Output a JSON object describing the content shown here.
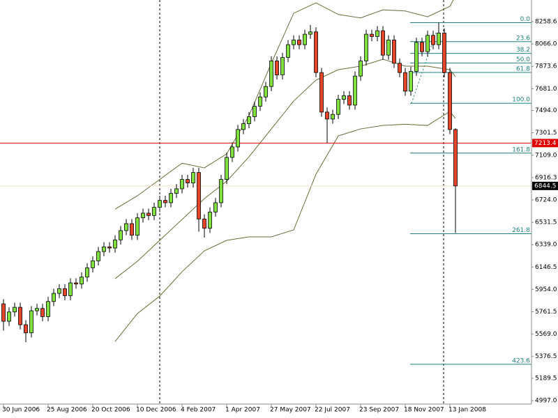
{
  "chart_data": {
    "type": "candlestick",
    "categories": [
      "30 Jun 2006",
      null,
      null,
      null,
      null,
      null,
      null,
      null,
      "25 Aug 2006",
      null,
      null,
      null,
      null,
      null,
      null,
      null,
      "20 Oct 2006",
      null,
      null,
      null,
      null,
      null,
      null,
      null,
      "10 Dec 2006",
      null,
      null,
      null,
      null,
      null,
      null,
      null,
      "4 Feb 2007",
      null,
      null,
      null,
      null,
      null,
      null,
      null,
      "1 Apr 2007",
      null,
      null,
      null,
      null,
      null,
      null,
      null,
      "27 May 2007",
      null,
      null,
      null,
      null,
      null,
      null,
      null,
      "22 Jul 2007",
      null,
      null,
      null,
      null,
      null,
      null,
      null,
      "23 Sep 2007",
      null,
      null,
      null,
      null,
      null,
      null,
      null,
      "18 Nov 2007",
      null,
      null,
      null,
      null,
      null,
      null,
      null,
      "13 Jan 2008",
      null
    ],
    "open": [
      5830,
      5680,
      5760,
      5800,
      5650,
      5580,
      5770,
      5790,
      5720,
      5850,
      5920,
      5960,
      5900,
      6010,
      6000,
      6060,
      6140,
      6200,
      6280,
      6320,
      6310,
      6380,
      6460,
      6520,
      6420,
      6570,
      6610,
      6590,
      6660,
      6720,
      6700,
      6780,
      6820,
      6900,
      6870,
      6960,
      6560,
      6480,
      6620,
      6700,
      6900,
      7090,
      7180,
      7330,
      7380,
      7440,
      7530,
      7610,
      7700,
      7920,
      7800,
      7950,
      8060,
      8100,
      8060,
      8150,
      8170,
      7820,
      7480,
      7420,
      7460,
      7590,
      7620,
      7540,
      7790,
      7920,
      8150,
      8130,
      8180,
      7970,
      8100,
      7900,
      7820,
      7660,
      7830,
      8080,
      8000,
      8140,
      8060,
      8160,
      7820,
      7330
    ],
    "high": [
      5870,
      5800,
      5840,
      5840,
      5690,
      5810,
      5830,
      5830,
      5890,
      5960,
      6000,
      6000,
      6050,
      6050,
      6100,
      6180,
      6240,
      6320,
      6360,
      6360,
      6420,
      6500,
      6560,
      6560,
      6610,
      6650,
      6650,
      6700,
      6760,
      6760,
      6820,
      6860,
      6940,
      6940,
      7000,
      7000,
      6600,
      6660,
      6740,
      6940,
      7130,
      7220,
      7370,
      7420,
      7480,
      7570,
      7650,
      7740,
      7960,
      7960,
      7990,
      8100,
      8140,
      8140,
      8190,
      8230,
      8210,
      7860,
      7520,
      7500,
      7630,
      7660,
      7660,
      7830,
      7960,
      8190,
      8190,
      8220,
      8220,
      8140,
      8140,
      7940,
      7860,
      7870,
      8120,
      8120,
      8180,
      8180,
      8250,
      8200,
      7860,
      7340
    ],
    "low": [
      5600,
      5640,
      5720,
      5610,
      5500,
      5540,
      5730,
      5680,
      5680,
      5810,
      5880,
      5860,
      5860,
      5960,
      5960,
      6020,
      6100,
      6160,
      6240,
      6270,
      6270,
      6340,
      6420,
      6380,
      6380,
      6530,
      6550,
      6550,
      6620,
      6660,
      6660,
      6740,
      6780,
      6830,
      6830,
      6450,
      6400,
      6440,
      6580,
      6660,
      6860,
      7050,
      7140,
      7290,
      7340,
      7400,
      7490,
      7570,
      7660,
      7760,
      7760,
      7910,
      8020,
      8020,
      8020,
      8110,
      7780,
      7440,
      7215,
      7380,
      7420,
      7550,
      7500,
      7500,
      7750,
      7880,
      8090,
      8090,
      7930,
      7930,
      7860,
      7780,
      7620,
      7620,
      7790,
      7960,
      7960,
      8020,
      8020,
      7780,
      7290,
      6440
    ],
    "close": [
      5680,
      5760,
      5800,
      5650,
      5580,
      5770,
      5790,
      5720,
      5850,
      5920,
      5960,
      5900,
      6010,
      6000,
      6060,
      6140,
      6200,
      6280,
      6320,
      6310,
      6380,
      6460,
      6520,
      6420,
      6570,
      6610,
      6590,
      6660,
      6720,
      6700,
      6780,
      6820,
      6900,
      6870,
      6960,
      6560,
      6480,
      6620,
      6700,
      6900,
      7090,
      7180,
      7330,
      7380,
      7440,
      7530,
      7610,
      7700,
      7920,
      7800,
      7950,
      8060,
      8100,
      8060,
      8150,
      8170,
      7820,
      7480,
      7420,
      7460,
      7590,
      7620,
      7540,
      7790,
      7920,
      8150,
      8130,
      8180,
      7970,
      8100,
      7900,
      7820,
      7660,
      7830,
      8080,
      8000,
      8140,
      8060,
      8160,
      7820,
      7330,
      6844.5
    ],
    "up_color": "#80e040",
    "down_color": "#e8462a",
    "bands": {
      "color": "#6b6b3a",
      "x": [
        20,
        24,
        28,
        32,
        36,
        40,
        44,
        48,
        52,
        56,
        60,
        64,
        68,
        72,
        76,
        80,
        81
      ],
      "upper": [
        6644,
        6760,
        6900,
        7040,
        7000,
        7120,
        7450,
        7900,
        8330,
        8420,
        8320,
        8290,
        8360,
        8350,
        8300,
        8390,
        8480
      ],
      "middle": [
        6046,
        6196,
        6376,
        6556,
        6735,
        6885,
        7095,
        7335,
        7575,
        7755,
        7845,
        7875,
        7935,
        7875,
        7875,
        7845,
        7785
      ],
      "lower": [
        5506,
        5746,
        5896,
        6106,
        6286,
        6376,
        6406,
        6406,
        6466,
        6945,
        7275,
        7335,
        7365,
        7375,
        7365,
        7485,
        7425
      ]
    },
    "fibonacci": {
      "color": "#1f7f7f",
      "levels": [
        {
          "label": "0.0",
          "price": 8250
        },
        {
          "label": "23.6",
          "price": 8086
        },
        {
          "label": "38.2",
          "price": 7985
        },
        {
          "label": "50.0",
          "price": 7903
        },
        {
          "label": "61.8",
          "price": 7821
        },
        {
          "label": "100.0",
          "price": 7556
        },
        {
          "label": "161.8",
          "price": 7127
        },
        {
          "label": "261.8",
          "price": 6433
        },
        {
          "label": "423.6",
          "price": 5310
        }
      ]
    },
    "alert_line": {
      "value": 7213.4,
      "color": "#e00000"
    },
    "ylim": [
      4967.2,
      8444.5
    ],
    "yticks": [
      8258.6,
      {
        "value": 8066,
        "label": "8066.0"
      },
      7873.6,
      {
        "value": 7681,
        "label": "7681.0"
      },
      {
        "value": 7494,
        "label": "7494.0"
      },
      7301.5,
      {
        "value": 7109,
        "label": "7109.0"
      },
      6916.3,
      {
        "value": 6724,
        "label": "6724.0"
      },
      6531.5,
      {
        "value": 6339,
        "label": "6339.0"
      },
      6146.5,
      {
        "value": 5954,
        "label": "5954.0"
      },
      5761.5,
      {
        "value": 5569,
        "label": "5569.0"
      },
      5376.5,
      5189.5,
      {
        "value": 4997,
        "label": "4997.0"
      }
    ]
  }
}
